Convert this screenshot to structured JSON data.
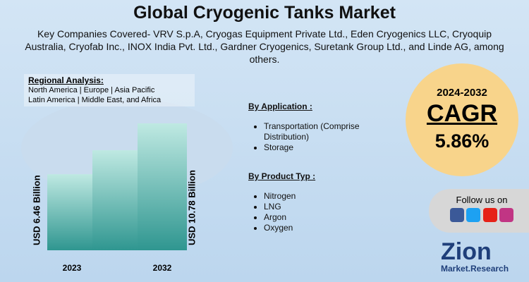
{
  "header": {
    "title": "Global Cryogenic Tanks Market",
    "subtitle": "Key Companies Covered- VRV S.p.A, Cryogas Equipment Private Ltd., Eden Cryogenics LLC, Cryoquip Australia, Cryofab Inc., INOX India Pvt. Ltd., Gardner Cryogenics, Suretank Group Ltd., and Linde AG, among others."
  },
  "regional_analysis": {
    "title": "Regional Analysis:",
    "lines": [
      "North America | Europe | Asia Pacific",
      "Latin America | Middle East, and Africa"
    ]
  },
  "chart_data": {
    "type": "bar",
    "categories": [
      "2023",
      null,
      "2032"
    ],
    "values": [
      6.46,
      8.5,
      10.78
    ],
    "value_labels": [
      "USD 6.46 Billion",
      null,
      "USD 10.78 Billion"
    ],
    "ylim": [
      0,
      11.5
    ],
    "color": "#3fa39d"
  },
  "by_application": {
    "title": "By Application :",
    "items": [
      "Transportation (Comprise Distribution)",
      "Storage"
    ]
  },
  "by_product": {
    "title": "By Product Typ :",
    "items": [
      "Nitrogen",
      "LNG",
      "Argon",
      "Oxygen"
    ]
  },
  "cagr": {
    "period": "2024-2032",
    "label": "CAGR",
    "value": "5.86%"
  },
  "follow": "Follow us on",
  "logo": {
    "name": "Zion",
    "tagline": "Market.Research"
  }
}
